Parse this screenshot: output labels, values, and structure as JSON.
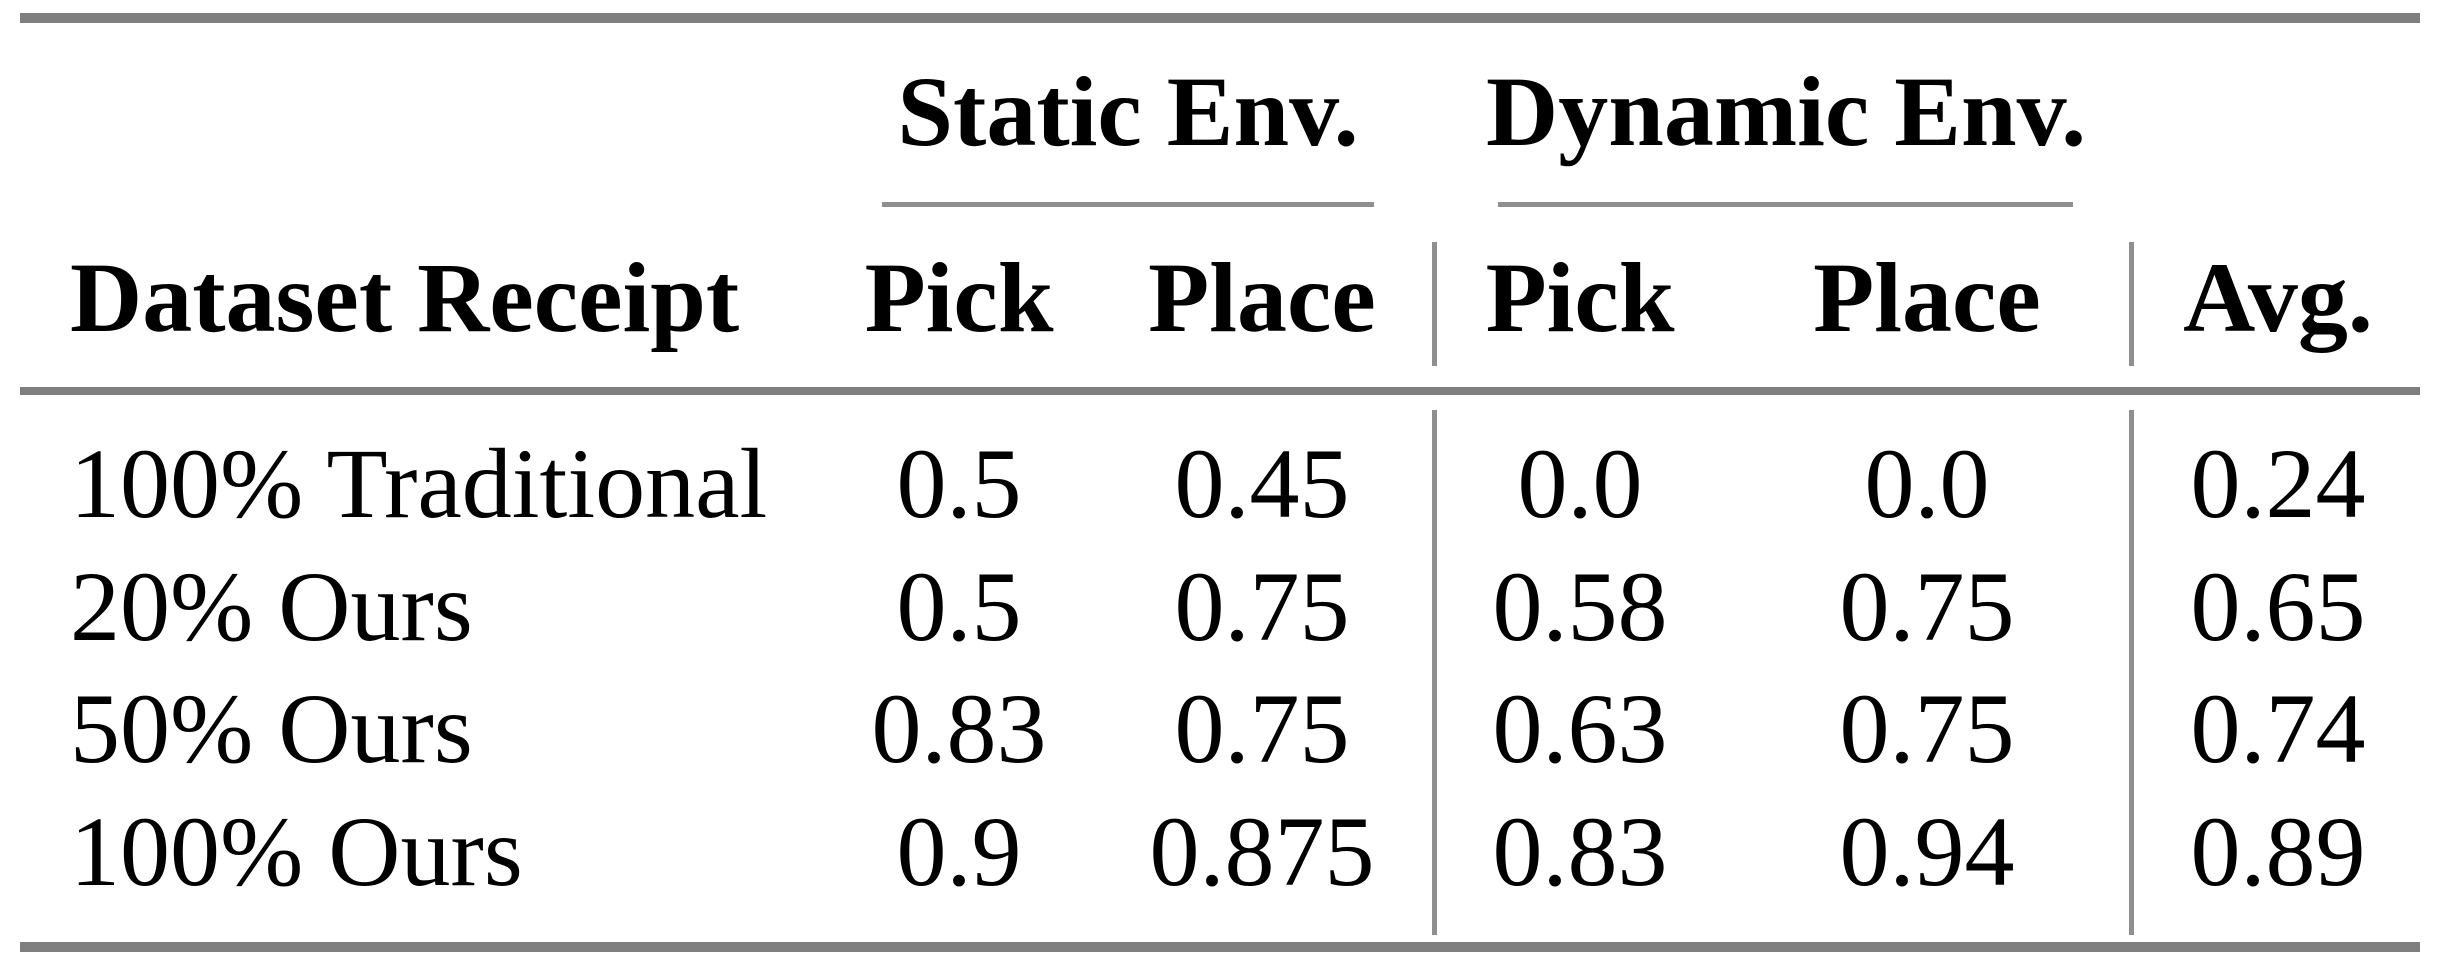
{
  "table": {
    "group_headers": [
      "Static Env.",
      "Dynamic Env."
    ],
    "header": {
      "row_label": "Dataset Receipt",
      "static_pick": "Pick",
      "static_place": "Place",
      "dynamic_pick": "Pick",
      "dynamic_place": "Place",
      "avg": "Avg."
    },
    "rows": [
      {
        "label": "100% Traditional",
        "static_pick": "0.5",
        "static_place": "0.45",
        "dynamic_pick": "0.0",
        "dynamic_place": "0.0",
        "avg": "0.24"
      },
      {
        "label": "20% Ours",
        "static_pick": "0.5",
        "static_place": "0.75",
        "dynamic_pick": "0.58",
        "dynamic_place": "0.75",
        "avg": "0.65"
      },
      {
        "label": "50% Ours",
        "static_pick": "0.83",
        "static_place": "0.75",
        "dynamic_pick": "0.63",
        "dynamic_place": "0.75",
        "avg": "0.74"
      },
      {
        "label": "100% Ours",
        "static_pick": "0.9",
        "static_place": "0.875",
        "dynamic_pick": "0.83",
        "dynamic_place": "0.94",
        "avg": "0.89"
      }
    ],
    "colors": {
      "heavy_rule": "#7f7f7f",
      "light_rule": "#8f8f8f",
      "text": "#000000",
      "background": "#ffffff"
    }
  },
  "chart_data": {
    "type": "table",
    "columns": [
      "Dataset Receipt",
      "Static Env. Pick",
      "Static Env. Place",
      "Dynamic Env. Pick",
      "Dynamic Env. Place",
      "Avg."
    ],
    "rows": [
      [
        "100% Traditional",
        0.5,
        0.45,
        0.0,
        0.0,
        0.24
      ],
      [
        "20% Ours",
        0.5,
        0.75,
        0.58,
        0.75,
        0.65
      ],
      [
        "50% Ours",
        0.83,
        0.75,
        0.63,
        0.75,
        0.74
      ],
      [
        "100% Ours",
        0.9,
        0.875,
        0.83,
        0.94,
        0.89
      ]
    ]
  }
}
